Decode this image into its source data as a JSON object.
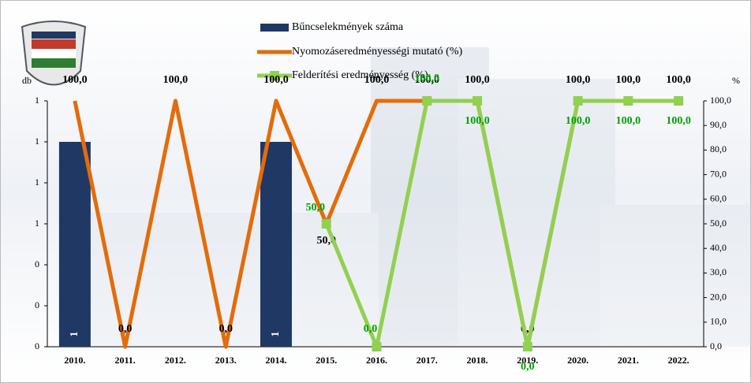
{
  "chart_data": {
    "type": "bar-line",
    "categories": [
      "2010.",
      "2011.",
      "2012.",
      "2013.",
      "2014.",
      "2015.",
      "2016.",
      "2017.",
      "2018.",
      "2019.",
      "2020.",
      "2021.",
      "2022."
    ],
    "y_label": "db",
    "y2_label": "%",
    "ylim": [
      0,
      1.2
    ],
    "yticks": [
      {
        "value": 0,
        "label": "0"
      },
      {
        "value": 0.2,
        "label": "0"
      },
      {
        "value": 0.4,
        "label": "0"
      },
      {
        "value": 0.6,
        "label": "1"
      },
      {
        "value": 0.8,
        "label": "1"
      },
      {
        "value": 1.0,
        "label": "1"
      },
      {
        "value": 1.2,
        "label": "1"
      }
    ],
    "y2lim": [
      0,
      100
    ],
    "y2ticks": [
      {
        "value": 0,
        "label": "0,0"
      },
      {
        "value": 10,
        "label": "10,0"
      },
      {
        "value": 20,
        "label": "20,0"
      },
      {
        "value": 30,
        "label": "30,0"
      },
      {
        "value": 40,
        "label": "40,0"
      },
      {
        "value": 50,
        "label": "50,0"
      },
      {
        "value": 60,
        "label": "60,0"
      },
      {
        "value": 70,
        "label": "70,0"
      },
      {
        "value": 80,
        "label": "80,0"
      },
      {
        "value": 90,
        "label": "90,0"
      },
      {
        "value": 100,
        "label": "100,0"
      }
    ],
    "series": [
      {
        "name": "Bűncselekmények száma",
        "type": "bar",
        "color": "#1f3864",
        "values": [
          1,
          null,
          null,
          null,
          1,
          null,
          null,
          null,
          null,
          null,
          null,
          null,
          null
        ]
      },
      {
        "name": "Nyomozáseredményességi mutató (%)",
        "type": "line",
        "axis": "y2",
        "color": "#e36c0a",
        "values": [
          100,
          0,
          100,
          0,
          100,
          50,
          100,
          100,
          100,
          0,
          100,
          100,
          100
        ],
        "value_labels": [
          "100,0",
          "0,0",
          "100,0",
          "0,0",
          "100,0",
          "50,0",
          "100,0",
          "100,0",
          "100,0",
          "0,0",
          "100,0",
          "100,0",
          "100,0"
        ]
      },
      {
        "name": "Felderítési eredményesség (%)",
        "type": "line",
        "axis": "y2",
        "color": "#92d050",
        "label_color": "#00a000",
        "values": [
          null,
          null,
          null,
          null,
          null,
          50,
          0,
          100,
          100,
          0,
          100,
          100,
          100
        ],
        "value_labels": [
          null,
          null,
          null,
          null,
          null,
          "50,0",
          "0,0",
          "100,0",
          "100,0",
          "0,0",
          "100,0",
          "100,0",
          "100,0"
        ]
      }
    ]
  }
}
